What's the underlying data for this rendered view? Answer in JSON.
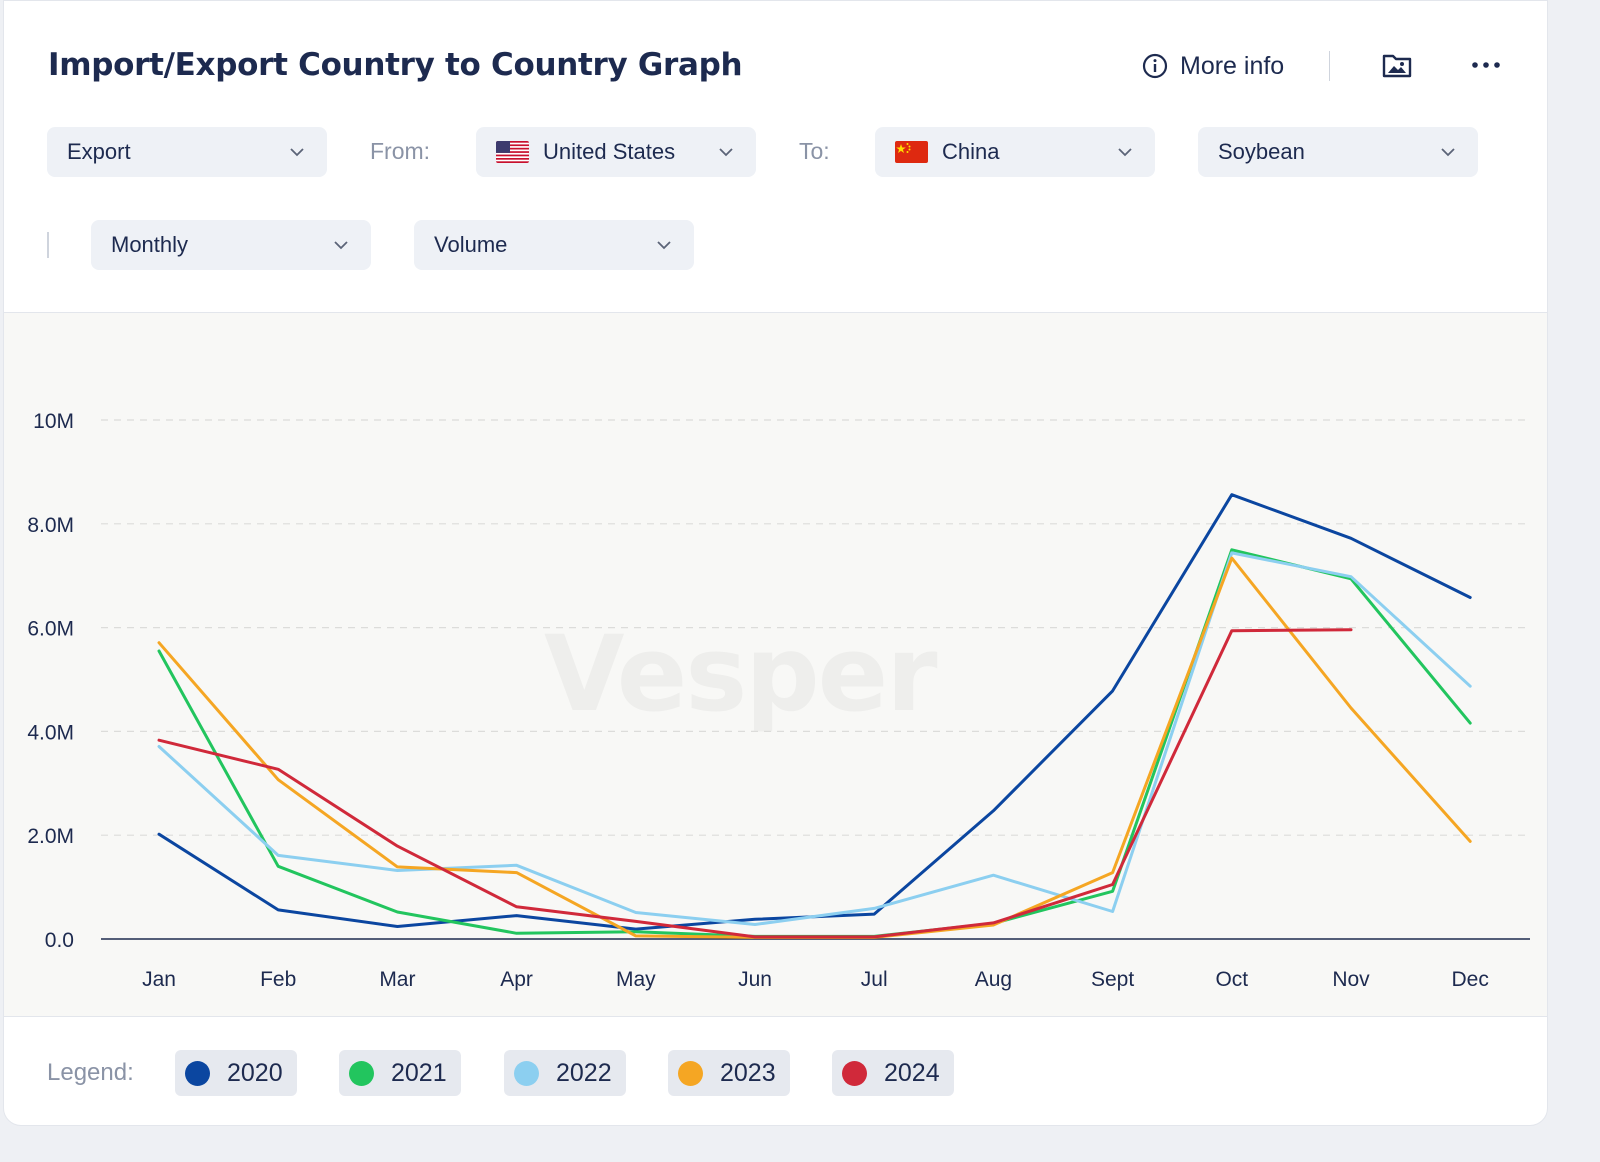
{
  "header": {
    "title": "Import/Export Country to Country Graph",
    "more_info_label": "More info"
  },
  "filters": {
    "trade_type": "Export",
    "from_label": "From:",
    "from_country": "United States",
    "to_label": "To:",
    "to_country": "China",
    "commodity": "Soybean",
    "frequency": "Monthly",
    "measure": "Volume"
  },
  "watermark": "Vesper",
  "legend": {
    "label": "Legend:"
  },
  "chart_data": {
    "type": "line",
    "title": "",
    "xlabel": "",
    "ylabel": "",
    "categories": [
      "Jan",
      "Feb",
      "Mar",
      "Apr",
      "May",
      "Jun",
      "Jul",
      "Aug",
      "Sept",
      "Oct",
      "Nov",
      "Dec"
    ],
    "y_ticks": [
      0,
      2000000,
      4000000,
      6000000,
      8000000,
      10000000
    ],
    "y_tick_labels": [
      "0.0",
      "2.0M",
      "4.0M",
      "6.0M",
      "8.0M",
      "10M"
    ],
    "ylim": [
      0,
      10000000
    ],
    "grid": true,
    "legend_position": "bottom",
    "series": [
      {
        "name": "2020",
        "color": "#0b46a0",
        "values": [
          2020000,
          560000,
          240000,
          450000,
          190000,
          380000,
          480000,
          2470000,
          4780000,
          8560000,
          7720000,
          6580000
        ]
      },
      {
        "name": "2021",
        "color": "#22c55e",
        "values": [
          5550000,
          1400000,
          520000,
          110000,
          140000,
          50000,
          50000,
          300000,
          920000,
          7500000,
          6940000,
          4160000
        ]
      },
      {
        "name": "2022",
        "color": "#8ccff0",
        "values": [
          3710000,
          1610000,
          1320000,
          1420000,
          510000,
          280000,
          590000,
          1230000,
          530000,
          7440000,
          6980000,
          4870000
        ]
      },
      {
        "name": "2023",
        "color": "#f5a623",
        "values": [
          5710000,
          3070000,
          1390000,
          1280000,
          60000,
          30000,
          30000,
          270000,
          1280000,
          7340000,
          4450000,
          1880000
        ]
      },
      {
        "name": "2024",
        "color": "#d0293a",
        "values": [
          3830000,
          3270000,
          1790000,
          620000,
          340000,
          40000,
          40000,
          310000,
          1050000,
          5940000,
          5960000,
          null
        ]
      }
    ]
  }
}
